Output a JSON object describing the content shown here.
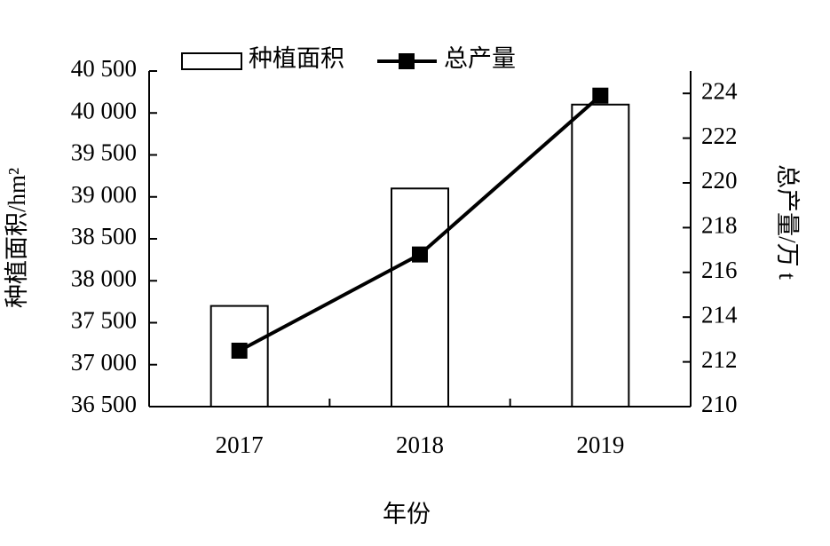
{
  "chart_data": {
    "type": "combo",
    "categories": [
      "2017",
      "2018",
      "2019"
    ],
    "xlabel": "年份",
    "ylabel": "种植面积/hm²",
    "y2label": "总产量/万 t",
    "series": [
      {
        "name": "种植面积",
        "type": "bar",
        "color": "#ffffff",
        "values": [
          37700,
          39100,
          40100
        ]
      },
      {
        "name": "总产量",
        "type": "line",
        "axis": "y2",
        "color": "#000000",
        "values": [
          212.5,
          216.8,
          223.9
        ]
      }
    ],
    "ylim": [
      36500,
      40500
    ],
    "yticks": [
      {
        "value": 36500,
        "label": "36 500"
      },
      {
        "value": 37000,
        "label": "37 000"
      },
      {
        "value": 37500,
        "label": "37 500"
      },
      {
        "value": 38000,
        "label": "38 000"
      },
      {
        "value": 38500,
        "label": "38 500"
      },
      {
        "value": 39000,
        "label": "39 000"
      },
      {
        "value": 39500,
        "label": "39 500"
      },
      {
        "value": 40000,
        "label": "40 000"
      },
      {
        "value": 40500,
        "label": "40 500"
      }
    ],
    "y2lim": [
      210,
      225
    ],
    "y2ticks": [
      210,
      212,
      214,
      216,
      218,
      220,
      222,
      224
    ],
    "grid": false
  }
}
